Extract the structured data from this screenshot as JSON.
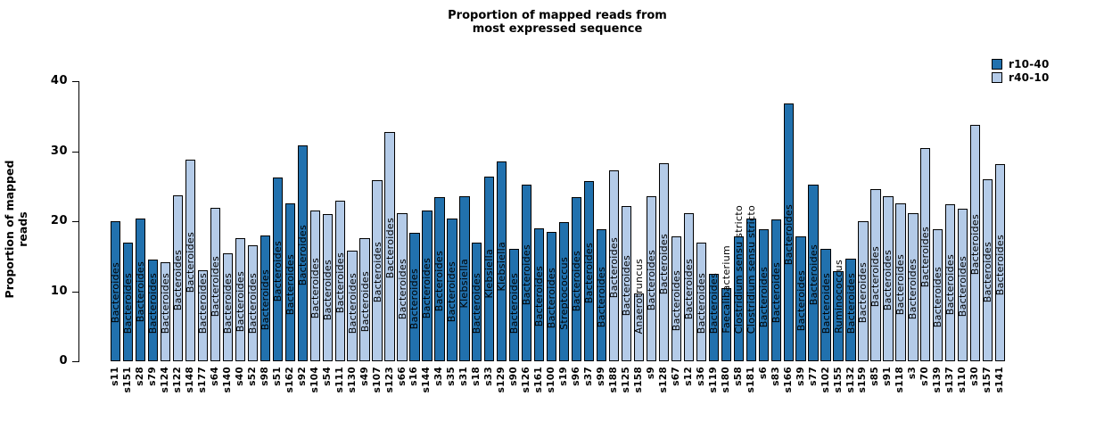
{
  "chart_data": {
    "type": "bar",
    "title_lines": [
      "Proportion of mapped reads from",
      "most expressed sequence"
    ],
    "ylabel": "Proportion of mapped reads",
    "ylim": [
      0,
      40
    ],
    "yticks": [
      0,
      10,
      20,
      30,
      40
    ],
    "grid": false,
    "legend_position": "top-right",
    "legend": [
      {
        "label": "r10-40",
        "color": "#2171AE"
      },
      {
        "label": "r40-10",
        "color": "#B4CBE8"
      }
    ],
    "series_colors": {
      "r10-40": "#2171AE",
      "r40-10": "#B4CBE8"
    },
    "bar_border_color": "#000000",
    "bars": [
      {
        "sample": "s11",
        "genus": "Bacteroides",
        "value": 20.0,
        "series": "r10-40"
      },
      {
        "sample": "s151",
        "genus": "Bacteroides",
        "value": 17.0,
        "series": "r10-40"
      },
      {
        "sample": "s28",
        "genus": "Bacteroides",
        "value": 20.4,
        "series": "r10-40"
      },
      {
        "sample": "s79",
        "genus": "Bacteroides",
        "value": 14.5,
        "series": "r10-40"
      },
      {
        "sample": "s124",
        "genus": "Bacteroides",
        "value": 14.2,
        "series": "r40-10"
      },
      {
        "sample": "s122",
        "genus": "Bacteroides",
        "value": 23.7,
        "series": "r40-10"
      },
      {
        "sample": "s148",
        "genus": "Bacteroides",
        "value": 28.8,
        "series": "r40-10"
      },
      {
        "sample": "s177",
        "genus": "Bacteroides",
        "value": 13.0,
        "series": "r40-10"
      },
      {
        "sample": "s64",
        "genus": "Bacteroides",
        "value": 21.9,
        "series": "r40-10"
      },
      {
        "sample": "s140",
        "genus": "Bacteroides",
        "value": 15.4,
        "series": "r40-10"
      },
      {
        "sample": "s40",
        "genus": "Bacteroides",
        "value": 17.6,
        "series": "r40-10"
      },
      {
        "sample": "s52",
        "genus": "Bacteroides",
        "value": 16.5,
        "series": "r40-10"
      },
      {
        "sample": "s98",
        "genus": "Bacteroides",
        "value": 18.0,
        "series": "r10-40"
      },
      {
        "sample": "s51",
        "genus": "Bacteroides",
        "value": 26.2,
        "series": "r10-40"
      },
      {
        "sample": "s162",
        "genus": "Bacteroides",
        "value": 22.5,
        "series": "r10-40"
      },
      {
        "sample": "s92",
        "genus": "Bacteroides",
        "value": 30.8,
        "series": "r10-40"
      },
      {
        "sample": "s104",
        "genus": "Bacteroides",
        "value": 21.5,
        "series": "r40-10"
      },
      {
        "sample": "s54",
        "genus": "Bacteroides",
        "value": 21.0,
        "series": "r40-10"
      },
      {
        "sample": "s111",
        "genus": "Bacteroides",
        "value": 22.9,
        "series": "r40-10"
      },
      {
        "sample": "s130",
        "genus": "Bacteroides",
        "value": 15.8,
        "series": "r40-10"
      },
      {
        "sample": "s49",
        "genus": "Bacteroides",
        "value": 17.6,
        "series": "r40-10"
      },
      {
        "sample": "s107",
        "genus": "Bacteroides",
        "value": 25.9,
        "series": "r40-10"
      },
      {
        "sample": "s123",
        "genus": "Bacteroides",
        "value": 32.8,
        "series": "r40-10"
      },
      {
        "sample": "s66",
        "genus": "Bacteroides",
        "value": 21.2,
        "series": "r40-10"
      },
      {
        "sample": "s16",
        "genus": "Bacteroides",
        "value": 18.3,
        "series": "r10-40"
      },
      {
        "sample": "s144",
        "genus": "Bacteroides",
        "value": 21.5,
        "series": "r10-40"
      },
      {
        "sample": "s34",
        "genus": "Bacteroides",
        "value": 23.5,
        "series": "r10-40"
      },
      {
        "sample": "s35",
        "genus": "Bacteroides",
        "value": 20.4,
        "series": "r10-40"
      },
      {
        "sample": "s31",
        "genus": "Klebsiella",
        "value": 23.6,
        "series": "r10-40"
      },
      {
        "sample": "s18",
        "genus": "Bacteroides",
        "value": 16.9,
        "series": "r10-40"
      },
      {
        "sample": "s33",
        "genus": "Klebsiella",
        "value": 26.4,
        "series": "r10-40"
      },
      {
        "sample": "s129",
        "genus": "Klebsiella",
        "value": 28.5,
        "series": "r10-40"
      },
      {
        "sample": "s90",
        "genus": "Bacteroides",
        "value": 16.0,
        "series": "r10-40"
      },
      {
        "sample": "s126",
        "genus": "Bacteroides",
        "value": 25.2,
        "series": "r10-40"
      },
      {
        "sample": "s161",
        "genus": "Bacteroides",
        "value": 19.0,
        "series": "r10-40"
      },
      {
        "sample": "s100",
        "genus": "Bacteroides",
        "value": 18.5,
        "series": "r10-40"
      },
      {
        "sample": "s19",
        "genus": "Streptococcus",
        "value": 19.9,
        "series": "r10-40"
      },
      {
        "sample": "s96",
        "genus": "Bacteroides",
        "value": 23.5,
        "series": "r10-40"
      },
      {
        "sample": "s37",
        "genus": "Bacteroides",
        "value": 25.7,
        "series": "r10-40"
      },
      {
        "sample": "s99",
        "genus": "Bacteroides",
        "value": 18.8,
        "series": "r10-40"
      },
      {
        "sample": "s188",
        "genus": "Bacteroides",
        "value": 27.3,
        "series": "r40-10"
      },
      {
        "sample": "s125",
        "genus": "Bacteroides",
        "value": 22.2,
        "series": "r40-10"
      },
      {
        "sample": "s158",
        "genus": "Anaerotruncus",
        "value": 9.7,
        "series": "r40-10"
      },
      {
        "sample": "s9",
        "genus": "Bacteroides",
        "value": 23.6,
        "series": "r40-10"
      },
      {
        "sample": "s128",
        "genus": "Bacteroides",
        "value": 28.3,
        "series": "r40-10"
      },
      {
        "sample": "s67",
        "genus": "Bacteroides",
        "value": 17.8,
        "series": "r40-10"
      },
      {
        "sample": "s12",
        "genus": "Bacteroides",
        "value": 21.1,
        "series": "r40-10"
      },
      {
        "sample": "s36",
        "genus": "Bacteroides",
        "value": 17.0,
        "series": "r40-10"
      },
      {
        "sample": "s119",
        "genus": "Bacteroides",
        "value": 12.5,
        "series": "r10-40"
      },
      {
        "sample": "s180",
        "genus": "Faecalibacterium",
        "value": 10.5,
        "series": "r10-40"
      },
      {
        "sample": "s58",
        "genus": "Clostridium sensu stricto",
        "value": 17.8,
        "series": "r10-40"
      },
      {
        "sample": "s181",
        "genus": "Clostridium sensu stricto",
        "value": 20.4,
        "series": "r10-40"
      },
      {
        "sample": "s6",
        "genus": "Bacteroides",
        "value": 18.8,
        "series": "r10-40"
      },
      {
        "sample": "s83",
        "genus": "Bacteroides",
        "value": 20.2,
        "series": "r10-40"
      },
      {
        "sample": "s166",
        "genus": "Bacteroides",
        "value": 36.8,
        "series": "r10-40"
      },
      {
        "sample": "s39",
        "genus": "Bacteroides",
        "value": 17.8,
        "series": "r10-40"
      },
      {
        "sample": "s77",
        "genus": "Bacteroides",
        "value": 25.2,
        "series": "r10-40"
      },
      {
        "sample": "s102",
        "genus": "Bacteroides",
        "value": 16.0,
        "series": "r10-40"
      },
      {
        "sample": "s155",
        "genus": "Ruminococcus",
        "value": 12.9,
        "series": "r10-40"
      },
      {
        "sample": "s132",
        "genus": "Bacteroides",
        "value": 14.6,
        "series": "r10-40"
      },
      {
        "sample": "s159",
        "genus": "Bacteroides",
        "value": 20.0,
        "series": "r40-10"
      },
      {
        "sample": "s85",
        "genus": "Bacteroides",
        "value": 24.6,
        "series": "r40-10"
      },
      {
        "sample": "s91",
        "genus": "Bacteroides",
        "value": 23.6,
        "series": "r40-10"
      },
      {
        "sample": "s118",
        "genus": "Bacteroides",
        "value": 22.5,
        "series": "r40-10"
      },
      {
        "sample": "s3",
        "genus": "Bacteroides",
        "value": 21.2,
        "series": "r40-10"
      },
      {
        "sample": "s70",
        "genus": "Bacteroides",
        "value": 30.4,
        "series": "r40-10"
      },
      {
        "sample": "s139",
        "genus": "Bacteroides",
        "value": 18.8,
        "series": "r40-10"
      },
      {
        "sample": "s137",
        "genus": "Bacteroides",
        "value": 22.4,
        "series": "r40-10"
      },
      {
        "sample": "s110",
        "genus": "Bacteroides",
        "value": 21.8,
        "series": "r40-10"
      },
      {
        "sample": "s30",
        "genus": "Bacteroides",
        "value": 33.8,
        "series": "r40-10"
      },
      {
        "sample": "s157",
        "genus": "Bacteroides",
        "value": 26.0,
        "series": "r40-10"
      },
      {
        "sample": "s141",
        "genus": "Bacteroides",
        "value": 28.1,
        "series": "r40-10"
      }
    ]
  }
}
